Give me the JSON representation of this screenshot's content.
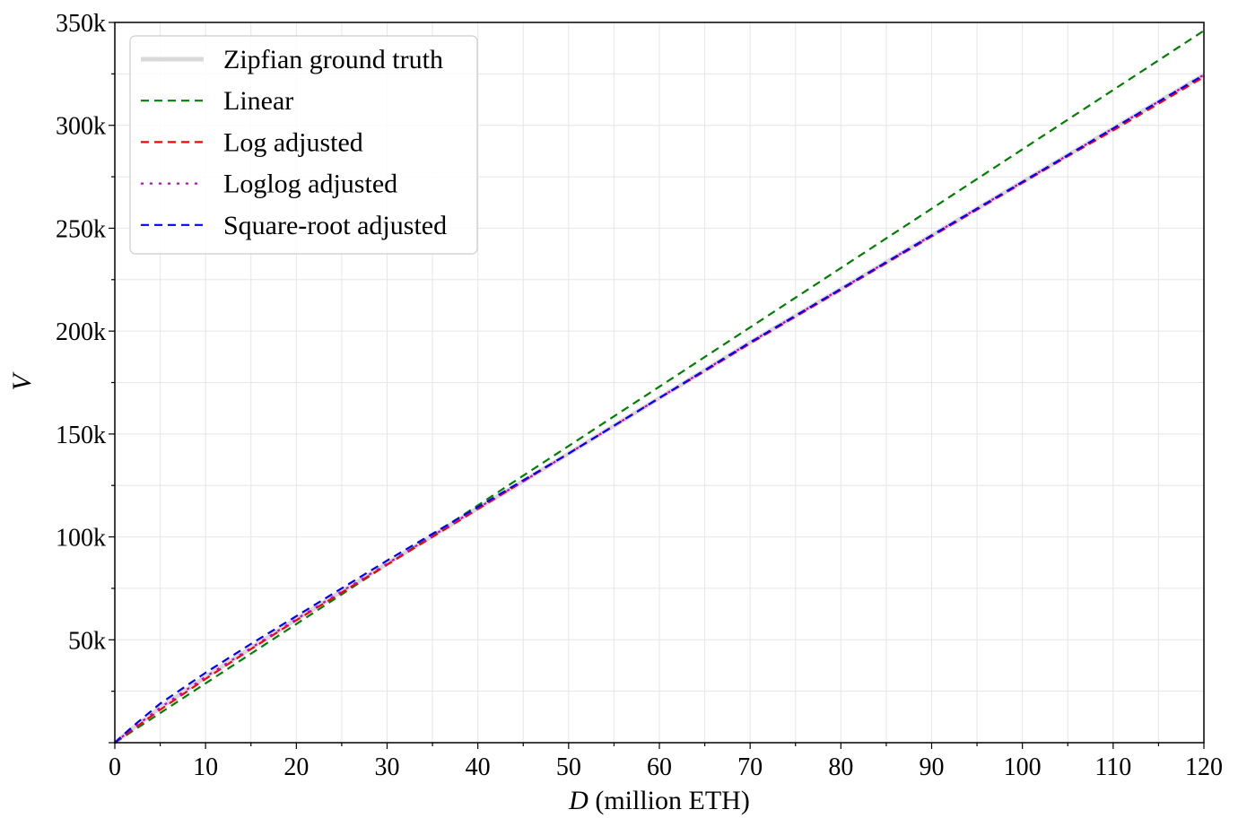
{
  "chart_data": {
    "type": "line",
    "xlabel_italic": "D",
    "xlabel_rest": " (million ETH)",
    "ylabel": "V",
    "xlim": [
      0,
      120
    ],
    "ylim": [
      0,
      350000
    ],
    "xticks": [
      0,
      10,
      20,
      30,
      40,
      50,
      60,
      70,
      80,
      90,
      100,
      110,
      120
    ],
    "xtick_labels": [
      "0",
      "10",
      "20",
      "30",
      "40",
      "50",
      "60",
      "70",
      "80",
      "90",
      "100",
      "110",
      "120"
    ],
    "yticks": [
      50000,
      100000,
      150000,
      200000,
      250000,
      300000,
      350000
    ],
    "ytick_labels": [
      "50k",
      "100k",
      "150k",
      "200k",
      "250k",
      "300k",
      "350k"
    ],
    "grid": true,
    "legend_position": "top-left",
    "series": [
      {
        "name": "Zipfian ground truth",
        "color": "#d9d9d9",
        "style": "solid",
        "x": [
          0,
          2,
          5,
          10,
          15,
          20,
          25,
          30,
          35,
          40,
          45,
          50,
          55,
          60,
          65,
          70,
          75,
          80,
          85,
          90,
          95,
          100,
          105,
          110,
          115,
          120
        ],
        "y": [
          0,
          7000,
          17000,
          32000,
          46000,
          60000,
          73500,
          87000,
          100500,
          114000,
          127000,
          140500,
          154000,
          167500,
          181000,
          194500,
          207500,
          220500,
          233500,
          246500,
          259500,
          272500,
          285500,
          298500,
          311500,
          324500
        ]
      },
      {
        "name": "Linear",
        "color": "#008000",
        "style": "dashed",
        "x": [
          0,
          120
        ],
        "y": [
          0,
          346000
        ]
      },
      {
        "name": "Log adjusted",
        "color": "#ff0000",
        "style": "dashed",
        "x": [
          0,
          2,
          5,
          10,
          15,
          20,
          25,
          30,
          35,
          40,
          45,
          50,
          55,
          60,
          65,
          70,
          75,
          80,
          85,
          90,
          95,
          100,
          105,
          110,
          115,
          120
        ],
        "y": [
          0,
          6500,
          16000,
          31000,
          45500,
          59500,
          73000,
          86500,
          100000,
          113500,
          127000,
          140500,
          154000,
          167500,
          180500,
          194000,
          207000,
          220000,
          233000,
          246000,
          259000,
          272000,
          285000,
          297500,
          310500,
          323500
        ]
      },
      {
        "name": "Loglog adjusted",
        "color": "#cc00cc",
        "style": "dotted",
        "x": [
          0,
          2,
          5,
          10,
          15,
          20,
          25,
          30,
          35,
          40,
          45,
          50,
          55,
          60,
          65,
          70,
          75,
          80,
          85,
          90,
          95,
          100,
          105,
          110,
          115,
          120
        ],
        "y": [
          0,
          7000,
          17000,
          32000,
          46000,
          60000,
          73500,
          87000,
          100500,
          114000,
          127000,
          140500,
          154000,
          167500,
          181000,
          194500,
          207500,
          220500,
          233500,
          246500,
          259500,
          272500,
          285500,
          298500,
          311500,
          324500
        ]
      },
      {
        "name": "Square-root adjusted",
        "color": "#0000ff",
        "style": "dashed",
        "x": [
          0,
          2,
          5,
          10,
          15,
          20,
          25,
          30,
          35,
          40,
          45,
          50,
          55,
          60,
          65,
          70,
          75,
          80,
          85,
          90,
          95,
          100,
          105,
          110,
          115,
          120
        ],
        "y": [
          0,
          8000,
          19000,
          34000,
          48000,
          61500,
          75000,
          88500,
          101500,
          114500,
          127500,
          140500,
          154000,
          167500,
          181000,
          194500,
          207500,
          220500,
          233500,
          246500,
          259500,
          272500,
          285500,
          298500,
          311500,
          324500
        ]
      }
    ]
  }
}
